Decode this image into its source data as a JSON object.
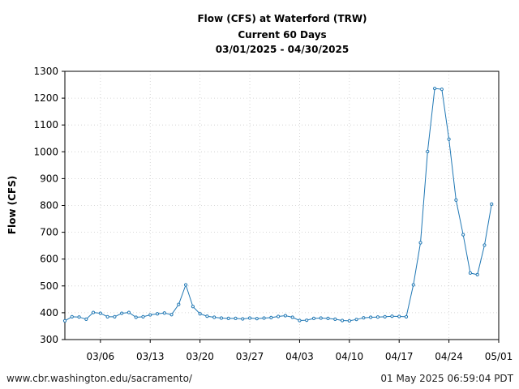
{
  "chart_data": {
    "type": "line",
    "title_lines": [
      "Flow (CFS) at Waterford (TRW)",
      "Current 60 Days",
      "03/01/2025 - 04/30/2025"
    ],
    "xlabel": "",
    "ylabel": "Flow (CFS)",
    "ylim": [
      300,
      1300
    ],
    "y_ticks": [
      300,
      400,
      500,
      600,
      700,
      800,
      900,
      1000,
      1100,
      1200,
      1300
    ],
    "xlim": [
      "2025-03-01",
      "2025-05-01"
    ],
    "x_ticks": [
      {
        "date": "2025-03-06",
        "label": "03/06"
      },
      {
        "date": "2025-03-13",
        "label": "03/13"
      },
      {
        "date": "2025-03-20",
        "label": "03/20"
      },
      {
        "date": "2025-03-27",
        "label": "03/27"
      },
      {
        "date": "2025-04-03",
        "label": "04/03"
      },
      {
        "date": "2025-04-10",
        "label": "04/10"
      },
      {
        "date": "2025-04-17",
        "label": "04/17"
      },
      {
        "date": "2025-04-24",
        "label": "04/24"
      },
      {
        "date": "2025-05-01",
        "label": "05/01"
      }
    ],
    "grid": true,
    "line_color": "#1f77b4",
    "x": [
      "2025-03-01",
      "2025-03-02",
      "2025-03-03",
      "2025-03-04",
      "2025-03-05",
      "2025-03-06",
      "2025-03-07",
      "2025-03-08",
      "2025-03-09",
      "2025-03-10",
      "2025-03-11",
      "2025-03-12",
      "2025-03-13",
      "2025-03-14",
      "2025-03-15",
      "2025-03-16",
      "2025-03-17",
      "2025-03-18",
      "2025-03-19",
      "2025-03-20",
      "2025-03-21",
      "2025-03-22",
      "2025-03-23",
      "2025-03-24",
      "2025-03-25",
      "2025-03-26",
      "2025-03-27",
      "2025-03-28",
      "2025-03-29",
      "2025-03-30",
      "2025-03-31",
      "2025-04-01",
      "2025-04-02",
      "2025-04-03",
      "2025-04-04",
      "2025-04-05",
      "2025-04-06",
      "2025-04-07",
      "2025-04-08",
      "2025-04-09",
      "2025-04-10",
      "2025-04-11",
      "2025-04-12",
      "2025-04-13",
      "2025-04-14",
      "2025-04-15",
      "2025-04-16",
      "2025-04-17",
      "2025-04-18",
      "2025-04-19",
      "2025-04-20",
      "2025-04-21",
      "2025-04-22",
      "2025-04-23",
      "2025-04-24",
      "2025-04-25",
      "2025-04-26",
      "2025-04-27",
      "2025-04-28",
      "2025-04-29",
      "2025-04-30"
    ],
    "values": [
      370,
      385,
      384,
      376,
      401,
      398,
      385,
      385,
      398,
      401,
      383,
      385,
      392,
      396,
      399,
      393,
      431,
      504,
      423,
      396,
      387,
      383,
      380,
      379,
      379,
      377,
      380,
      378,
      380,
      382,
      386,
      389,
      383,
      371,
      372,
      379,
      380,
      379,
      376,
      371,
      370,
      375,
      381,
      383,
      384,
      385,
      387,
      386,
      385,
      504,
      661,
      1001,
      1236,
      1233,
      1047,
      820,
      691,
      548,
      542,
      652,
      805
    ]
  },
  "footer": {
    "source": "www.cbr.washington.edu/sacramento/",
    "generated": "01 May 2025 06:59:04 PDT"
  }
}
